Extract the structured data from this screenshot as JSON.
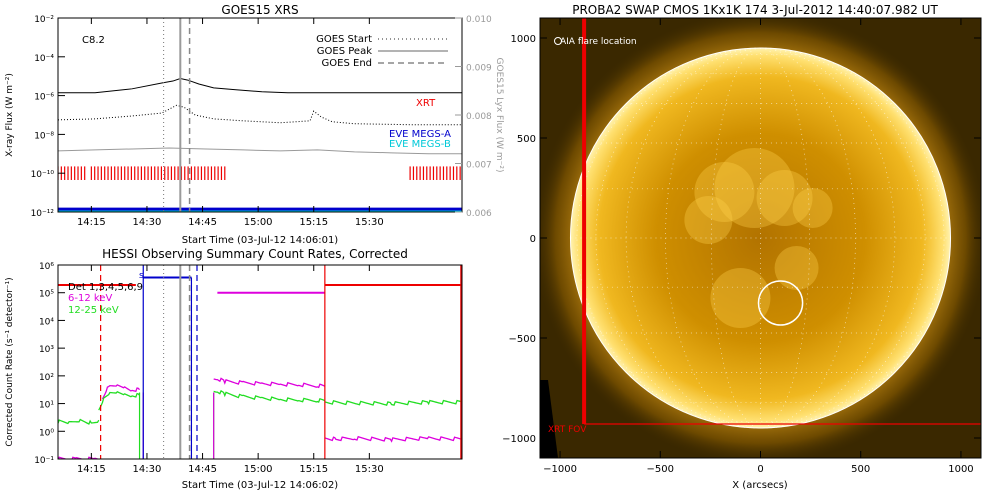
{
  "colors": {
    "black": "#000000",
    "grey": "#9a9a9a",
    "red": "#ee0000",
    "blue": "#0000cc",
    "cyan": "#00c8d8",
    "magenta": "#dd00dd",
    "green": "#22dd22",
    "sun_core": "#c98a00",
    "sun_limb": "#ffe070",
    "off_limb": "#3a2800"
  },
  "chart_data": [
    {
      "panel": "goes",
      "type": "line",
      "title": "GOES15 XRS",
      "xlabel": "Start Time (03-Jul-12 14:06:01)",
      "ylabel": "X-ray Flux (W m⁻²)",
      "y2label": "GOES15 Lyx Flux (W m⁻²)",
      "xlim": [
        0,
        109
      ],
      "ylim": [
        -12,
        -2
      ],
      "y2lim": [
        0.006,
        0.01
      ],
      "x_ticks": [
        {
          "v": 9,
          "label": "14:15"
        },
        {
          "v": 24,
          "label": "14:30"
        },
        {
          "v": 39,
          "label": "14:45"
        },
        {
          "v": 54,
          "label": "15:00"
        },
        {
          "v": 69,
          "label": "15:15"
        },
        {
          "v": 84,
          "label": "15:30"
        }
      ],
      "y_ticks": [
        {
          "v": -12,
          "label": "10⁻¹²"
        },
        {
          "v": -10,
          "label": "10⁻¹⁰"
        },
        {
          "v": -8,
          "label": "10⁻⁸"
        },
        {
          "v": -6,
          "label": "10⁻⁶"
        },
        {
          "v": -4,
          "label": "10⁻⁴"
        },
        {
          "v": -2,
          "label": "10⁻²"
        }
      ],
      "y2_ticks": [
        {
          "v": 0.006,
          "label": "0.006"
        },
        {
          "v": 0.007,
          "label": "0.007"
        },
        {
          "v": 0.008,
          "label": "0.008"
        },
        {
          "v": 0.009,
          "label": "0.009"
        },
        {
          "v": 0.01,
          "label": "0.010"
        }
      ],
      "flare_class": "C8.2",
      "series": [
        {
          "name": "",
          "color": "black",
          "dash": "",
          "x": [
            0,
            10,
            20,
            28,
            31,
            33,
            35,
            38,
            42,
            48,
            55,
            62,
            70,
            80,
            95,
            109
          ],
          "y": [
            -5.85,
            -5.85,
            -5.65,
            -5.35,
            -5.25,
            -5.12,
            -5.2,
            -5.4,
            -5.6,
            -5.7,
            -5.8,
            -5.85,
            -5.85,
            -5.85,
            -5.85,
            -5.85
          ]
        },
        {
          "name": "",
          "color": "black",
          "dash": "1,2",
          "x": [
            0,
            10,
            20,
            28,
            32,
            34,
            37,
            42,
            50,
            60,
            68,
            69,
            71,
            74,
            80,
            95,
            109
          ],
          "y": [
            -7.25,
            -7.2,
            -7.05,
            -6.9,
            -6.5,
            -6.6,
            -7.0,
            -7.2,
            -7.3,
            -7.4,
            -7.3,
            -6.8,
            -7.1,
            -7.35,
            -7.45,
            -7.5,
            -7.5
          ]
        },
        {
          "name": "",
          "color": "grey",
          "dash": "",
          "x": [
            0,
            10,
            20,
            30,
            40,
            50,
            60,
            70,
            80,
            90,
            100,
            109
          ],
          "y": [
            -8.85,
            -8.8,
            -8.75,
            -8.7,
            -8.75,
            -8.8,
            -8.85,
            -8.8,
            -8.9,
            -8.95,
            -9.0,
            -9.0
          ]
        }
      ],
      "baselines": [
        {
          "name": "",
          "color": "blue",
          "y": -11.85
        },
        {
          "name": "",
          "color": "cyan",
          "y": -12.0
        }
      ],
      "legend": [
        {
          "label": "GOES Start",
          "style": "dotted"
        },
        {
          "label": "GOES Peak",
          "style": "solid"
        },
        {
          "label": "GOES End",
          "style": "dashed"
        }
      ],
      "labels": [
        {
          "text": "XRT",
          "color": "red"
        },
        {
          "text": "EVE MEGS-A",
          "color": "blue"
        },
        {
          "text": "EVE MEGS-B",
          "color": "cyan"
        }
      ],
      "time_markers": {
        "start": 28.5,
        "peak": 33,
        "end": 35.5
      },
      "xrt_obs": [
        [
          0,
          8
        ],
        [
          9,
          45
        ],
        [
          95,
          109
        ]
      ]
    },
    {
      "panel": "hessi",
      "type": "line",
      "title": "HESSI Observing Summary Count Rates, Corrected",
      "xlabel": "Start Time (03-Jul-12 14:06:02)",
      "ylabel": "Corrected Count Rate (s⁻¹ detector⁻¹)",
      "xlim": [
        0,
        109
      ],
      "ylim": [
        -1,
        6
      ],
      "x_ticks": [
        {
          "v": 9,
          "label": "14:15"
        },
        {
          "v": 24,
          "label": "14:30"
        },
        {
          "v": 39,
          "label": "14:45"
        },
        {
          "v": 54,
          "label": "15:00"
        },
        {
          "v": 69,
          "label": "15:15"
        },
        {
          "v": 84,
          "label": "15:30"
        }
      ],
      "y_ticks": [
        {
          "v": -1,
          "label": "10⁻¹"
        },
        {
          "v": 0,
          "label": "10⁰"
        },
        {
          "v": 1,
          "label": "10¹"
        },
        {
          "v": 2,
          "label": "10²"
        },
        {
          "v": 3,
          "label": "10³"
        },
        {
          "v": 4,
          "label": "10⁴"
        },
        {
          "v": 5,
          "label": "10⁵"
        },
        {
          "v": 6,
          "label": "10⁶"
        }
      ],
      "legend": [
        {
          "label": "Det 1,3,4,5,6,9",
          "color": "black"
        },
        {
          "label": "6-12 keV",
          "color": "magenta"
        },
        {
          "label": "12-25 keV",
          "color": "green"
        }
      ],
      "series": [
        {
          "name": "6-12 keV",
          "color": "magenta",
          "segments": [
            {
              "x": [
                0,
                5,
                10,
                12
              ],
              "y": [
                -1,
                -1,
                -1,
                -1
              ]
            },
            {
              "x": [
                12,
                13,
                14,
                16,
                18,
                20,
                22
              ],
              "y": [
                1.2,
                1.5,
                1.6,
                1.65,
                1.6,
                1.5,
                1.5
              ]
            },
            {
              "x": [
                42,
                43,
                45,
                50,
                55,
                60,
                65,
                70,
                72
              ],
              "y": [
                1.9,
                1.9,
                1.8,
                1.75,
                1.72,
                1.7,
                1.68,
                1.65,
                1.62
              ]
            },
            {
              "x": [
                72,
                75,
                80,
                90,
                100,
                109
              ],
              "y": [
                -0.25,
                -0.28,
                -0.25,
                -0.3,
                -0.25,
                -0.28
              ]
            }
          ]
        },
        {
          "name": "12-25 keV",
          "color": "green",
          "segments": [
            {
              "x": [
                0,
                3,
                6,
                9,
                11
              ],
              "y": [
                0.35,
                0.3,
                0.4,
                0.3,
                0.4
              ]
            },
            {
              "x": [
                11,
                12,
                14,
                16,
                18,
                20,
                22
              ],
              "y": [
                0.8,
                1.1,
                1.35,
                1.4,
                1.35,
                1.3,
                1.3
              ]
            },
            {
              "x": [
                42,
                43,
                45,
                50,
                55,
                60,
                65,
                70,
                72
              ],
              "y": [
                1.45,
                1.45,
                1.35,
                1.25,
                1.2,
                1.15,
                1.13,
                1.12,
                1.1
              ]
            },
            {
              "x": [
                72,
                80,
                90,
                100,
                109
              ],
              "y": [
                1.05,
                1.02,
                1.0,
                1.05,
                1.05
              ]
            }
          ]
        }
      ],
      "attenuator_levels": [
        {
          "color": "red",
          "x": [
            0,
            21
          ],
          "y": 5.28
        },
        {
          "color": "blue",
          "x": [
            23,
            36
          ],
          "y": 5.55
        },
        {
          "color": "magenta",
          "x": [
            43,
            72
          ],
          "y": 5.0
        },
        {
          "color": "red",
          "x": [
            72,
            109
          ],
          "y": 5.28
        }
      ],
      "marker_s": "s",
      "night_bounds": [
        {
          "color": "blue",
          "x": 23
        },
        {
          "color": "red",
          "x": 72
        }
      ],
      "time_markers": {
        "start": 28.5,
        "peak": 33,
        "end": 35.5,
        "red_dashed": 11.5,
        "blue_dashed": 37.5
      }
    },
    {
      "panel": "swap",
      "type": "image",
      "title": "PROBA2 SWAP CMOS 1Kx1K 174  3-Jul-2012 14:40:07.982 UT",
      "xlabel": "X (arcsecs)",
      "ylabel": "Y (arcsecs)",
      "xlim": [
        -1100,
        1100
      ],
      "ylim": [
        -1100,
        1100
      ],
      "x_ticks": [
        {
          "v": -1000,
          "label": "−1000"
        },
        {
          "v": -500,
          "label": "−500"
        },
        {
          "v": 0,
          "label": "0"
        },
        {
          "v": 500,
          "label": "500"
        },
        {
          "v": 1000,
          "label": "1000"
        }
      ],
      "y_ticks": [
        {
          "v": -1000,
          "label": "−1000"
        },
        {
          "v": -500,
          "label": "−500"
        },
        {
          "v": 0,
          "label": "0"
        },
        {
          "v": 500,
          "label": "500"
        },
        {
          "v": 1000,
          "label": "1000"
        }
      ],
      "solar_radius": 948,
      "aia_label": "AIA flare location",
      "flare_location": {
        "x": 100,
        "y": -325,
        "r": 110
      },
      "fov_label": "XRT FOV",
      "xrt_fov": {
        "x_min": -880,
        "x_max": 1100,
        "y_min": -930,
        "y_max": 1100
      }
    }
  ]
}
